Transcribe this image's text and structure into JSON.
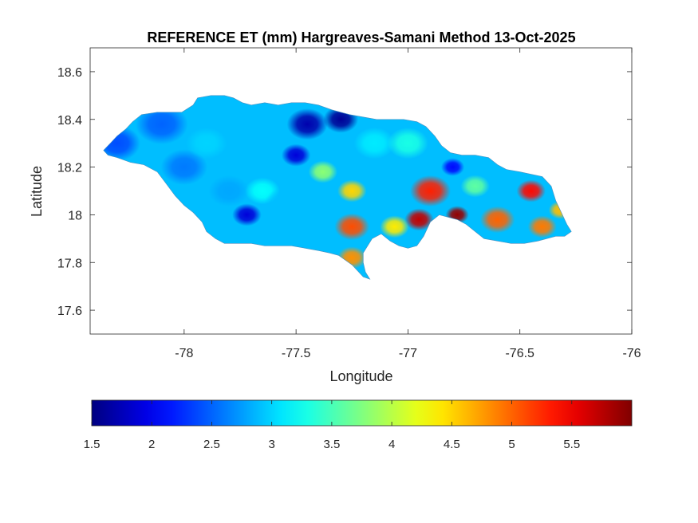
{
  "chart_data": {
    "type": "heatmap",
    "title": "REFERENCE ET (mm) Hargreaves-Samani Method  13-Oct-2025",
    "xlabel": "Longitude",
    "ylabel": "Latitude",
    "xlim": [
      -78.42,
      -76.0
    ],
    "ylim": [
      17.5,
      18.7
    ],
    "xticks": [
      -78,
      -77.5,
      -77,
      -76.5,
      -76
    ],
    "xtick_labels": [
      "-78",
      "-77.5",
      "-77",
      "-76.5",
      "-76"
    ],
    "yticks": [
      17.6,
      17.8,
      18,
      18.2,
      18.4,
      18.6
    ],
    "ytick_labels": [
      "17.6",
      "17.8",
      "18",
      "18.2",
      "18.4",
      "18.6"
    ],
    "colormap": "jet",
    "colorbar": {
      "location": "bottom",
      "range": [
        1.5,
        6.0
      ],
      "ticks": [
        1.5,
        2,
        2.5,
        3,
        3.5,
        4,
        4.5,
        5,
        5.5
      ],
      "tick_labels": [
        "1.5",
        "2",
        "2.5",
        "3",
        "3.5",
        "4",
        "4.5",
        "5",
        "5.5"
      ]
    },
    "region_outline": [
      [
        -78.36,
        18.27
      ],
      [
        -78.33,
        18.3
      ],
      [
        -78.3,
        18.33
      ],
      [
        -78.26,
        18.36
      ],
      [
        -78.23,
        18.39
      ],
      [
        -78.19,
        18.42
      ],
      [
        -78.12,
        18.43
      ],
      [
        -78.06,
        18.43
      ],
      [
        -78.01,
        18.43
      ],
      [
        -77.96,
        18.46
      ],
      [
        -77.94,
        18.49
      ],
      [
        -77.88,
        18.5
      ],
      [
        -77.82,
        18.5
      ],
      [
        -77.78,
        18.49
      ],
      [
        -77.74,
        18.47
      ],
      [
        -77.7,
        18.46
      ],
      [
        -77.64,
        18.47
      ],
      [
        -77.58,
        18.46
      ],
      [
        -77.52,
        18.47
      ],
      [
        -77.46,
        18.47
      ],
      [
        -77.4,
        18.46
      ],
      [
        -77.34,
        18.44
      ],
      [
        -77.3,
        18.43
      ],
      [
        -77.26,
        18.42
      ],
      [
        -77.2,
        18.41
      ],
      [
        -77.14,
        18.4
      ],
      [
        -77.08,
        18.4
      ],
      [
        -77.02,
        18.4
      ],
      [
        -76.96,
        18.39
      ],
      [
        -76.92,
        18.37
      ],
      [
        -76.88,
        18.33
      ],
      [
        -76.85,
        18.29
      ],
      [
        -76.81,
        18.26
      ],
      [
        -76.76,
        18.25
      ],
      [
        -76.7,
        18.25
      ],
      [
        -76.64,
        18.24
      ],
      [
        -76.6,
        18.21
      ],
      [
        -76.56,
        18.19
      ],
      [
        -76.5,
        18.18
      ],
      [
        -76.45,
        18.17
      ],
      [
        -76.4,
        18.16
      ],
      [
        -76.36,
        18.12
      ],
      [
        -76.34,
        18.06
      ],
      [
        -76.31,
        18.0
      ],
      [
        -76.29,
        17.96
      ],
      [
        -76.27,
        17.93
      ],
      [
        -76.3,
        17.91
      ],
      [
        -76.34,
        17.91
      ],
      [
        -76.38,
        17.9
      ],
      [
        -76.42,
        17.89
      ],
      [
        -76.48,
        17.88
      ],
      [
        -76.54,
        17.88
      ],
      [
        -76.6,
        17.89
      ],
      [
        -76.66,
        17.9
      ],
      [
        -76.7,
        17.93
      ],
      [
        -76.74,
        17.96
      ],
      [
        -76.78,
        17.98
      ],
      [
        -76.82,
        17.99
      ],
      [
        -76.86,
        18.0
      ],
      [
        -76.9,
        17.97
      ],
      [
        -76.93,
        17.91
      ],
      [
        -76.96,
        17.87
      ],
      [
        -77.0,
        17.86
      ],
      [
        -77.04,
        17.87
      ],
      [
        -77.08,
        17.89
      ],
      [
        -77.12,
        17.92
      ],
      [
        -77.16,
        17.9
      ],
      [
        -77.18,
        17.87
      ],
      [
        -77.2,
        17.84
      ],
      [
        -77.2,
        17.8
      ],
      [
        -77.19,
        17.76
      ],
      [
        -77.17,
        17.73
      ],
      [
        -77.2,
        17.74
      ],
      [
        -77.23,
        17.77
      ],
      [
        -77.25,
        17.79
      ],
      [
        -77.28,
        17.81
      ],
      [
        -77.31,
        17.83
      ],
      [
        -77.35,
        17.84
      ],
      [
        -77.4,
        17.85
      ],
      [
        -77.46,
        17.86
      ],
      [
        -77.52,
        17.87
      ],
      [
        -77.58,
        17.87
      ],
      [
        -77.64,
        17.87
      ],
      [
        -77.7,
        17.88
      ],
      [
        -77.76,
        17.88
      ],
      [
        -77.82,
        17.88
      ],
      [
        -77.86,
        17.9
      ],
      [
        -77.9,
        17.93
      ],
      [
        -77.92,
        17.97
      ],
      [
        -77.96,
        18.01
      ],
      [
        -78.0,
        18.04
      ],
      [
        -78.04,
        18.08
      ],
      [
        -78.08,
        18.13
      ],
      [
        -78.12,
        18.18
      ],
      [
        -78.18,
        18.21
      ],
      [
        -78.24,
        18.22
      ],
      [
        -78.3,
        18.24
      ],
      [
        -78.34,
        18.25
      ]
    ],
    "value_field": [
      {
        "lon": -78.3,
        "lat": 18.3,
        "value": 2.4,
        "spread": 0.08
      },
      {
        "lon": -78.1,
        "lat": 18.38,
        "value": 2.5,
        "spread": 0.09
      },
      {
        "lon": -78.0,
        "lat": 18.2,
        "value": 2.6,
        "spread": 0.08
      },
      {
        "lon": -77.9,
        "lat": 18.3,
        "value": 3.0,
        "spread": 0.07
      },
      {
        "lon": -77.8,
        "lat": 18.1,
        "value": 2.8,
        "spread": 0.07
      },
      {
        "lon": -77.65,
        "lat": 18.1,
        "value": 3.2,
        "spread": 0.06
      },
      {
        "lon": -77.72,
        "lat": 18.0,
        "value": 1.9,
        "spread": 0.05
      },
      {
        "lon": -77.55,
        "lat": 18.05,
        "value": 2.9,
        "spread": 0.07
      },
      {
        "lon": -77.45,
        "lat": 18.38,
        "value": 1.7,
        "spread": 0.07
      },
      {
        "lon": -77.3,
        "lat": 18.4,
        "value": 1.6,
        "spread": 0.06
      },
      {
        "lon": -77.5,
        "lat": 18.25,
        "value": 1.9,
        "spread": 0.05
      },
      {
        "lon": -77.38,
        "lat": 18.18,
        "value": 3.8,
        "spread": 0.05
      },
      {
        "lon": -77.25,
        "lat": 18.1,
        "value": 4.5,
        "spread": 0.05
      },
      {
        "lon": -77.15,
        "lat": 18.3,
        "value": 3.1,
        "spread": 0.07
      },
      {
        "lon": -77.0,
        "lat": 18.3,
        "value": 3.3,
        "spread": 0.07
      },
      {
        "lon": -76.9,
        "lat": 18.1,
        "value": 5.3,
        "spread": 0.07
      },
      {
        "lon": -76.95,
        "lat": 17.98,
        "value": 5.7,
        "spread": 0.05
      },
      {
        "lon": -76.78,
        "lat": 18.0,
        "value": 5.9,
        "spread": 0.04
      },
      {
        "lon": -77.25,
        "lat": 17.95,
        "value": 5.1,
        "spread": 0.06
      },
      {
        "lon": -77.25,
        "lat": 17.82,
        "value": 4.8,
        "spread": 0.05
      },
      {
        "lon": -77.06,
        "lat": 17.95,
        "value": 4.4,
        "spread": 0.05
      },
      {
        "lon": -76.8,
        "lat": 18.2,
        "value": 2.1,
        "spread": 0.04
      },
      {
        "lon": -76.7,
        "lat": 18.12,
        "value": 3.6,
        "spread": 0.05
      },
      {
        "lon": -76.6,
        "lat": 17.98,
        "value": 5.0,
        "spread": 0.06
      },
      {
        "lon": -76.45,
        "lat": 18.1,
        "value": 5.4,
        "spread": 0.05
      },
      {
        "lon": -76.4,
        "lat": 17.95,
        "value": 4.9,
        "spread": 0.05
      },
      {
        "lon": -76.32,
        "lat": 18.02,
        "value": 4.6,
        "spread": 0.04
      }
    ]
  }
}
